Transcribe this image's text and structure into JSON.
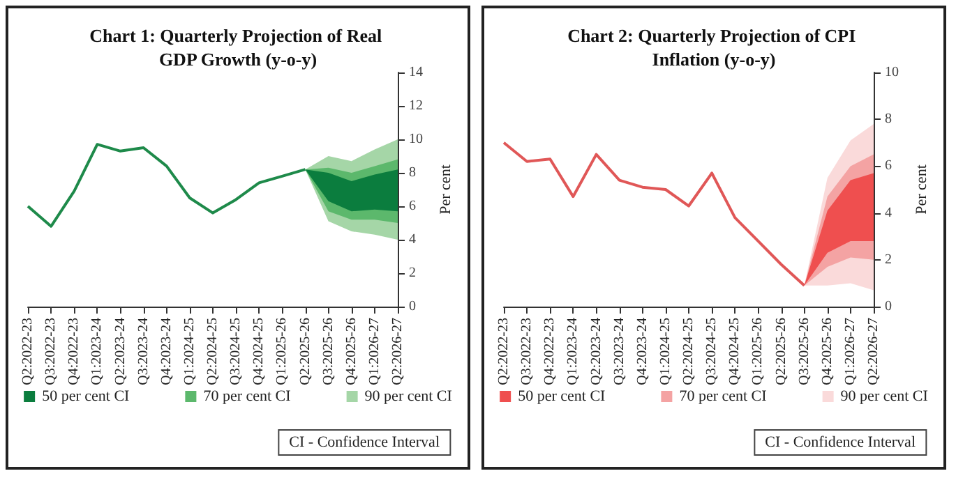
{
  "chart_data": [
    {
      "type": "line",
      "title": "Chart 1: Quarterly Projection of Real GDP Growth (y-o-y)",
      "ylabel": "Per cent",
      "categories": [
        "Q2:2022-23",
        "Q3:2022-23",
        "Q4:2022-23",
        "Q1:2023-24",
        "Q2:2023-24",
        "Q3:2023-24",
        "Q4:2023-24",
        "Q1:2024-25",
        "Q2:2024-25",
        "Q3:2024-25",
        "Q4:2024-25",
        "Q1:2025-26",
        "Q2:2025-26",
        "Q3:2025-26",
        "Q4:2025-26",
        "Q1:2026-27",
        "Q2:2026-27"
      ],
      "series": [
        {
          "color": "#1e8a4a",
          "values": [
            6.0,
            4.8,
            6.9,
            9.7,
            9.3,
            9.5,
            8.4,
            6.5,
            5.6,
            6.4,
            7.4,
            7.8,
            8.2,
            null,
            null,
            null,
            null
          ]
        },
        {
          "type": "area",
          "name": "50 per cent CI",
          "color": "#0b7d3e",
          "values": [
            null,
            null,
            null,
            null,
            null,
            null,
            null,
            null,
            null,
            null,
            null,
            null,
            null,
            null,
            null,
            null,
            null
          ],
          "lower": [
            null,
            null,
            null,
            null,
            null,
            null,
            null,
            null,
            null,
            null,
            null,
            null,
            8.2,
            6.3,
            5.7,
            5.8,
            5.7
          ],
          "upper": [
            null,
            null,
            null,
            null,
            null,
            null,
            null,
            null,
            null,
            null,
            null,
            null,
            8.2,
            8.0,
            7.5,
            7.9,
            8.2
          ]
        },
        {
          "type": "area",
          "name": "70 per cent CI",
          "color": "#5cb86c",
          "values": [
            null,
            null,
            null,
            null,
            null,
            null,
            null,
            null,
            null,
            null,
            null,
            null,
            null,
            null,
            null,
            null,
            null
          ],
          "lower": [
            null,
            null,
            null,
            null,
            null,
            null,
            null,
            null,
            null,
            null,
            null,
            null,
            8.2,
            5.7,
            5.2,
            5.2,
            5.0
          ],
          "upper": [
            null,
            null,
            null,
            null,
            null,
            null,
            null,
            null,
            null,
            null,
            null,
            null,
            8.2,
            8.3,
            8.0,
            8.4,
            8.8
          ]
        },
        {
          "type": "area",
          "name": "90 per cent CI",
          "color": "#a5d6a7",
          "values": [
            null,
            null,
            null,
            null,
            null,
            null,
            null,
            null,
            null,
            null,
            null,
            null,
            null,
            null,
            null,
            null,
            null
          ],
          "lower": [
            null,
            null,
            null,
            null,
            null,
            null,
            null,
            null,
            null,
            null,
            null,
            null,
            8.2,
            5.1,
            4.5,
            4.3,
            4.0
          ],
          "upper": [
            null,
            null,
            null,
            null,
            null,
            null,
            null,
            null,
            null,
            null,
            null,
            null,
            8.2,
            9.0,
            8.7,
            9.4,
            10.0
          ]
        }
      ],
      "ylim": [
        0,
        14
      ],
      "yticks": [
        0,
        2,
        4,
        6,
        8,
        10,
        12,
        14
      ],
      "grid": false,
      "legend": "bottom",
      "annotations": [
        "CI - Confidence Interval"
      ]
    },
    {
      "type": "line",
      "title": "Chart 2: Quarterly Projection of CPI Inflation (y-o-y)",
      "ylabel": "Per cent",
      "categories": [
        "Q2:2022-23",
        "Q3:2022-23",
        "Q4:2022-23",
        "Q1:2023-24",
        "Q2:2023-24",
        "Q3:2023-24",
        "Q4:2023-24",
        "Q1:2024-25",
        "Q2:2024-25",
        "Q3:2024-25",
        "Q4:2024-25",
        "Q1:2025-26",
        "Q2:2025-26",
        "Q3:2025-26",
        "Q4:2025-26",
        "Q1:2026-27",
        "Q2:2026-27"
      ],
      "series": [
        {
          "color": "#e05757",
          "values": [
            7.0,
            6.2,
            6.3,
            4.7,
            6.5,
            5.4,
            5.1,
            5.0,
            4.3,
            5.7,
            3.8,
            2.8,
            1.8,
            0.9,
            null,
            null,
            null
          ]
        },
        {
          "type": "area",
          "name": "50 per cent CI",
          "color": "#ef4f4f",
          "values": [
            null,
            null,
            null,
            null,
            null,
            null,
            null,
            null,
            null,
            null,
            null,
            null,
            null,
            null,
            null,
            null,
            null
          ],
          "lower": [
            null,
            null,
            null,
            null,
            null,
            null,
            null,
            null,
            null,
            null,
            null,
            null,
            null,
            0.9,
            2.3,
            2.8,
            2.8
          ],
          "upper": [
            null,
            null,
            null,
            null,
            null,
            null,
            null,
            null,
            null,
            null,
            null,
            null,
            null,
            0.9,
            4.1,
            5.4,
            5.7
          ]
        },
        {
          "type": "area",
          "name": "70 per cent CI",
          "color": "#f4a3a3",
          "values": [
            null,
            null,
            null,
            null,
            null,
            null,
            null,
            null,
            null,
            null,
            null,
            null,
            null,
            null,
            null,
            null,
            null
          ],
          "lower": [
            null,
            null,
            null,
            null,
            null,
            null,
            null,
            null,
            null,
            null,
            null,
            null,
            null,
            0.9,
            1.7,
            2.1,
            2.0
          ],
          "upper": [
            null,
            null,
            null,
            null,
            null,
            null,
            null,
            null,
            null,
            null,
            null,
            null,
            null,
            0.9,
            4.7,
            6.0,
            6.5
          ]
        },
        {
          "type": "area",
          "name": "90 per cent CI",
          "color": "#fadada",
          "values": [
            null,
            null,
            null,
            null,
            null,
            null,
            null,
            null,
            null,
            null,
            null,
            null,
            null,
            null,
            null,
            null,
            null
          ],
          "lower": [
            null,
            null,
            null,
            null,
            null,
            null,
            null,
            null,
            null,
            null,
            null,
            null,
            null,
            0.9,
            0.9,
            1.0,
            0.7
          ],
          "upper": [
            null,
            null,
            null,
            null,
            null,
            null,
            null,
            null,
            null,
            null,
            null,
            null,
            null,
            0.9,
            5.5,
            7.1,
            7.8
          ]
        }
      ],
      "ylim": [
        0,
        10
      ],
      "yticks": [
        0,
        2,
        4,
        6,
        8,
        10
      ],
      "grid": false,
      "legend": "bottom",
      "annotations": [
        "CI - Confidence Interval"
      ]
    }
  ]
}
